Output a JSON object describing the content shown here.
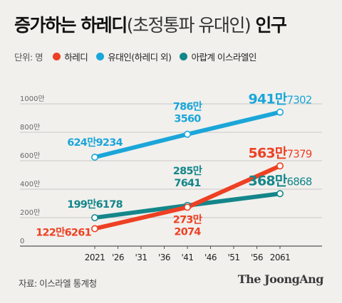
{
  "title": {
    "main1": "증가하는 하레디",
    "paren": "(초정통파 유대인)",
    "main2": " 인구"
  },
  "legend": {
    "unit": "단위: 명"
  },
  "source": "자료: 이스라엘 통계청",
  "brand": "The JoongAng",
  "chart_data": {
    "type": "line",
    "x": [
      2021,
      2041,
      2061
    ],
    "x_tick_labels": [
      "2021",
      "'26",
      "'31",
      "'36",
      "'41",
      "'46",
      "'51",
      "'56",
      "2061"
    ],
    "x_tick_years": [
      2021,
      2026,
      2031,
      2036,
      2041,
      2046,
      2051,
      2056,
      2061
    ],
    "y_tick_labels": [
      "0",
      "200만",
      "400만",
      "600만",
      "800만",
      "1000만"
    ],
    "y_tick_values": [
      0,
      200,
      400,
      600,
      800,
      1000
    ],
    "ylim": [
      0,
      1000
    ],
    "series": [
      {
        "name": "하레디",
        "color": "#ee4023",
        "values": [
          122.6261,
          273.2074,
          563.7379
        ],
        "labels": [
          {
            "big": "122만",
            "small": "6261"
          },
          {
            "big": "273만",
            "small": "2074"
          },
          {
            "big": "563만",
            "small": "7379"
          }
        ]
      },
      {
        "name": "유대인(하레디 외)",
        "color": "#1ba6d9",
        "values": [
          624.9234,
          786.356,
          941.7302
        ],
        "labels": [
          {
            "big": "624만",
            "small": "9234"
          },
          {
            "big": "786만",
            "small": "3560"
          },
          {
            "big": "941만",
            "small": "7302"
          }
        ]
      },
      {
        "name": "아랍계 이스라엘인",
        "color": "#14868a",
        "values": [
          199.6178,
          285.7641,
          368.6868
        ],
        "labels": [
          {
            "big": "199만",
            "small": "6178"
          },
          {
            "big": "285만",
            "small": "7641"
          },
          {
            "big": "368만",
            "small": "6868"
          }
        ]
      }
    ]
  }
}
